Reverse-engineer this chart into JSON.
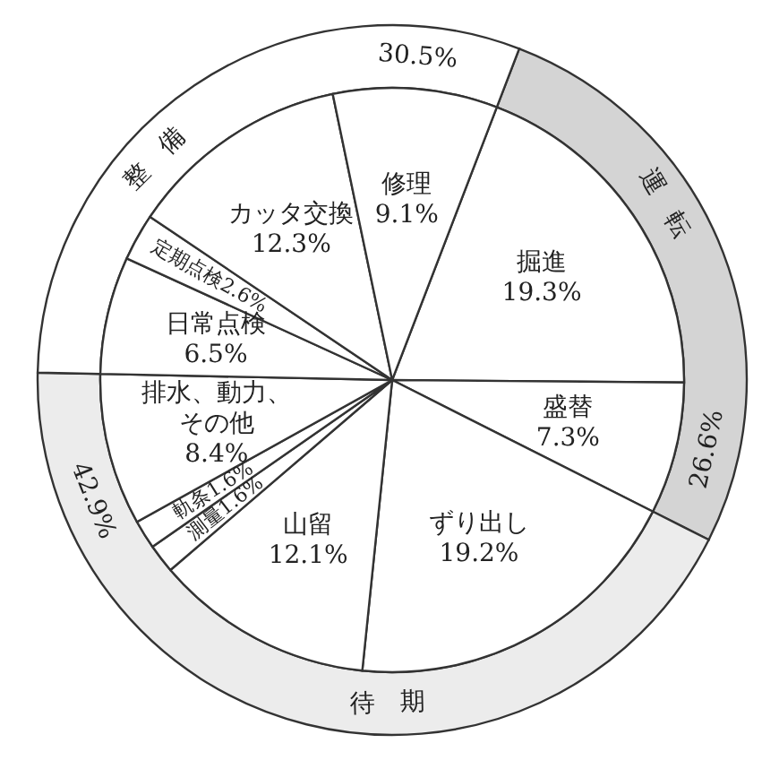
{
  "chart_data": [
    {
      "type": "pie",
      "categories": [
        "掘進",
        "盛替",
        "ずり出し",
        "山留",
        "測量",
        "軌条",
        "排水、動力、その他",
        "日常点検",
        "定期点検",
        "カッタ交換",
        "修理"
      ],
      "values": [
        19.3,
        7.3,
        19.2,
        12.1,
        1.6,
        1.6,
        8.4,
        6.5,
        2.6,
        12.3,
        9.1
      ],
      "colors": [
        "#ffffff",
        "#ffffff",
        "#ffffff",
        "#ffffff",
        "#ffffff",
        "#ffffff",
        "#ffffff",
        "#ffffff",
        "#ffffff",
        "#ffffff",
        "#ffffff"
      ],
      "value_labels": [
        "19.3%",
        "7.3%",
        "19.2%",
        "12.1%",
        "1.6%",
        "1.6%",
        "8.4%",
        "6.5%",
        "2.6%",
        "12.3%",
        "9.1%"
      ]
    },
    {
      "type": "donut",
      "categories": [
        "運転",
        "待期",
        "整備"
      ],
      "values": [
        26.6,
        42.9,
        30.5
      ],
      "colors": [
        "#d4d4d4",
        "#ececec",
        "#ffffff"
      ],
      "value_labels": [
        "26.6%",
        "42.9%",
        "30.5%"
      ]
    }
  ]
}
